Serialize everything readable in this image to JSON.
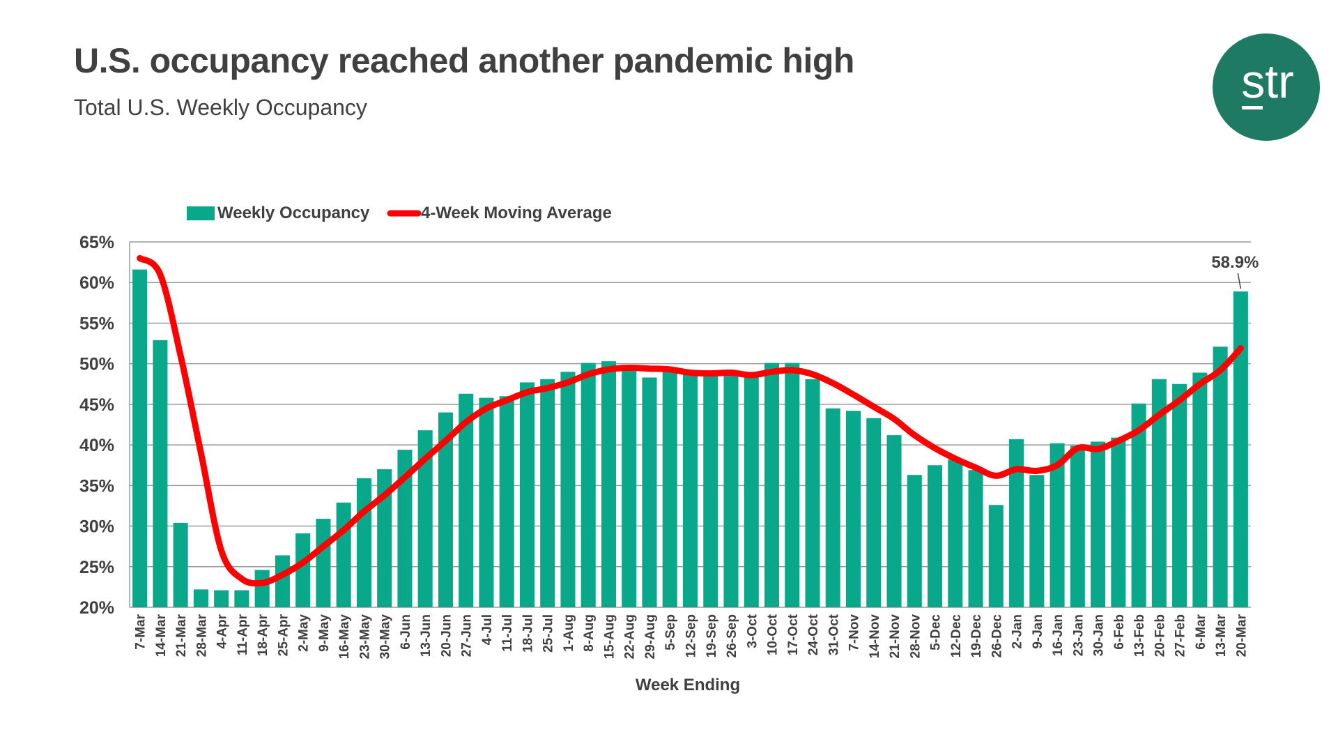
{
  "header": {
    "title": "U.S. occupancy reached another pandemic high",
    "subtitle": "Total U.S. Weekly Occupancy"
  },
  "logo": {
    "text": "str",
    "color": "#1e7a62"
  },
  "colors": {
    "bar": "#0aa88a",
    "line": "#ff0000",
    "grid": "#9a9a9a",
    "text": "#404040"
  },
  "chart_data": {
    "type": "bar",
    "xlabel": "Week Ending",
    "ylabel": "",
    "ylim": [
      0.2,
      0.65
    ],
    "y_ticks": [
      "20%",
      "25%",
      "30%",
      "35%",
      "40%",
      "45%",
      "50%",
      "55%",
      "60%",
      "65%"
    ],
    "legend_position": "top-left",
    "grid": true,
    "categories": [
      "7-Mar",
      "14-Mar",
      "21-Mar",
      "28-Mar",
      "4-Apr",
      "11-Apr",
      "18-Apr",
      "25-Apr",
      "2-May",
      "9-May",
      "16-May",
      "23-May",
      "30-May",
      "6-Jun",
      "13-Jun",
      "20-Jun",
      "27-Jun",
      "4-Jul",
      "11-Jul",
      "18-Jul",
      "25-Jul",
      "1-Aug",
      "8-Aug",
      "15-Aug",
      "22-Aug",
      "29-Aug",
      "5-Sep",
      "12-Sep",
      "19-Sep",
      "26-Sep",
      "3-Oct",
      "10-Oct",
      "17-Oct",
      "24-Oct",
      "31-Oct",
      "7-Nov",
      "14-Nov",
      "21-Nov",
      "28-Nov",
      "5-Dec",
      "12-Dec",
      "19-Dec",
      "26-Dec",
      "2-Jan",
      "9-Jan",
      "16-Jan",
      "23-Jan",
      "30-Jan",
      "6-Feb",
      "13-Feb",
      "20-Feb",
      "27-Feb",
      "6-Mar",
      "13-Mar",
      "20-Mar"
    ],
    "series": [
      {
        "name": "Weekly Occupancy",
        "kind": "bar",
        "values": [
          0.616,
          0.529,
          0.304,
          0.222,
          0.221,
          0.221,
          0.246,
          0.264,
          0.291,
          0.309,
          0.329,
          0.359,
          0.37,
          0.394,
          0.418,
          0.44,
          0.463,
          0.458,
          0.46,
          0.477,
          0.481,
          0.49,
          0.501,
          0.503,
          0.495,
          0.483,
          0.49,
          0.488,
          0.487,
          0.488,
          0.485,
          0.501,
          0.501,
          0.481,
          0.445,
          0.442,
          0.433,
          0.412,
          0.363,
          0.375,
          0.382,
          0.369,
          0.326,
          0.407,
          0.363,
          0.402,
          0.399,
          0.404,
          0.409,
          0.451,
          0.481,
          0.475,
          0.489,
          0.521,
          0.589
        ]
      },
      {
        "name": "4-Week Moving Average",
        "kind": "line",
        "values": [
          0.63,
          0.61,
          0.51,
          0.39,
          0.27,
          0.235,
          0.23,
          0.24,
          0.255,
          0.275,
          0.295,
          0.318,
          0.338,
          0.36,
          0.383,
          0.405,
          0.428,
          0.445,
          0.455,
          0.465,
          0.47,
          0.477,
          0.487,
          0.493,
          0.495,
          0.494,
          0.493,
          0.489,
          0.488,
          0.489,
          0.486,
          0.49,
          0.492,
          0.487,
          0.476,
          0.462,
          0.447,
          0.432,
          0.412,
          0.396,
          0.383,
          0.372,
          0.362,
          0.37,
          0.368,
          0.375,
          0.396,
          0.395,
          0.405,
          0.418,
          0.437,
          0.455,
          0.475,
          0.492,
          0.519
        ]
      }
    ],
    "annotations": [
      {
        "category": "20-Mar",
        "label": "58.9%"
      }
    ]
  }
}
